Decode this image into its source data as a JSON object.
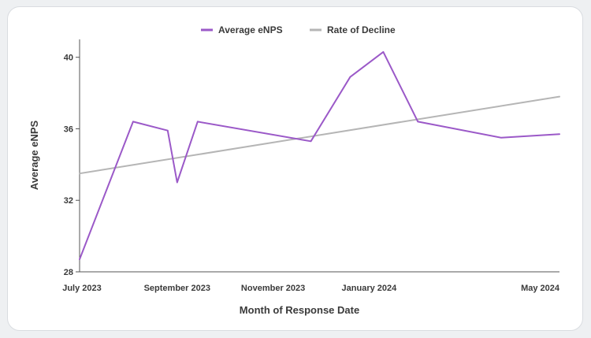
{
  "chart_data": {
    "type": "line",
    "xlabel": "Month of Response Date",
    "ylabel": "Average eNPS",
    "ylim": [
      28,
      41
    ],
    "y_ticks": [
      28,
      32,
      36,
      40
    ],
    "x_domain": [
      "2023-07-01",
      "2024-05-01"
    ],
    "x_ticks": [
      {
        "date": "2023-07-01",
        "label": "July 2023"
      },
      {
        "date": "2023-09-01",
        "label": "September 2023"
      },
      {
        "date": "2023-11-01",
        "label": "November 2023"
      },
      {
        "date": "2024-01-01",
        "label": "January 2024"
      },
      {
        "date": "2024-05-01",
        "label": "May 2024"
      }
    ],
    "legend_position": "top-center",
    "grid": false,
    "series": [
      {
        "name": "Average eNPS",
        "color": "#9b59c8",
        "points": [
          {
            "x": "2023-07-01",
            "y": 28.7
          },
          {
            "x": "2023-08-04",
            "y": 36.4
          },
          {
            "x": "2023-08-26",
            "y": 35.9
          },
          {
            "x": "2023-09-01",
            "y": 33.0
          },
          {
            "x": "2023-09-14",
            "y": 36.4
          },
          {
            "x": "2023-11-25",
            "y": 35.3
          },
          {
            "x": "2023-12-20",
            "y": 38.9
          },
          {
            "x": "2024-01-10",
            "y": 40.3
          },
          {
            "x": "2024-02-01",
            "y": 36.4
          },
          {
            "x": "2024-03-25",
            "y": 35.5
          },
          {
            "x": "2024-05-01",
            "y": 35.7
          }
        ]
      },
      {
        "name": "Rate of Decline",
        "color": "#b5b5b5",
        "points": [
          {
            "x": "2023-07-01",
            "y": 33.5
          },
          {
            "x": "2024-05-01",
            "y": 37.8
          }
        ]
      }
    ]
  }
}
